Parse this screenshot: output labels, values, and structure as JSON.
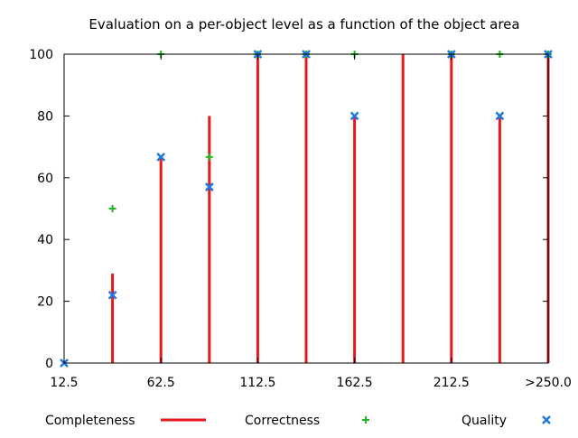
{
  "chart_data": {
    "type": "bar",
    "title": "Evaluation on a per-object level as a function of the object area",
    "xlabel": "",
    "ylabel": "",
    "x_range": [
      12.5,
      262.5
    ],
    "ylim": [
      0,
      100
    ],
    "x_ticks": [
      {
        "value": 12.5,
        "label": "12.5"
      },
      {
        "value": 62.5,
        "label": "62.5"
      },
      {
        "value": 112.5,
        "label": "112.5"
      },
      {
        "value": 162.5,
        "label": "162.5"
      },
      {
        "value": 212.5,
        "label": "212.5"
      },
      {
        "value": 262.5,
        "label": ">250.0"
      }
    ],
    "y_ticks": [
      0,
      20,
      40,
      60,
      80,
      100
    ],
    "grid": false,
    "legend_position": "bottom",
    "x": [
      12.5,
      37.5,
      62.5,
      87.5,
      112.5,
      137.5,
      162.5,
      187.5,
      212.5,
      237.5,
      262.5
    ],
    "series": [
      {
        "name": "Completeness",
        "marker": "impulse",
        "color": "#e41a1c",
        "values": [
          0,
          29,
          67,
          80,
          100,
          100,
          80,
          100,
          100,
          80,
          100
        ]
      },
      {
        "name": "Correctness",
        "marker": "plus",
        "color": "#1fb81f",
        "values": [
          null,
          50,
          100,
          66.7,
          100,
          100,
          100,
          null,
          100,
          100,
          100
        ]
      },
      {
        "name": "Quality",
        "marker": "cross",
        "color": "#1f78e0",
        "values": [
          0,
          22,
          66.7,
          57,
          100,
          100,
          80,
          null,
          100,
          80,
          100
        ]
      }
    ]
  }
}
